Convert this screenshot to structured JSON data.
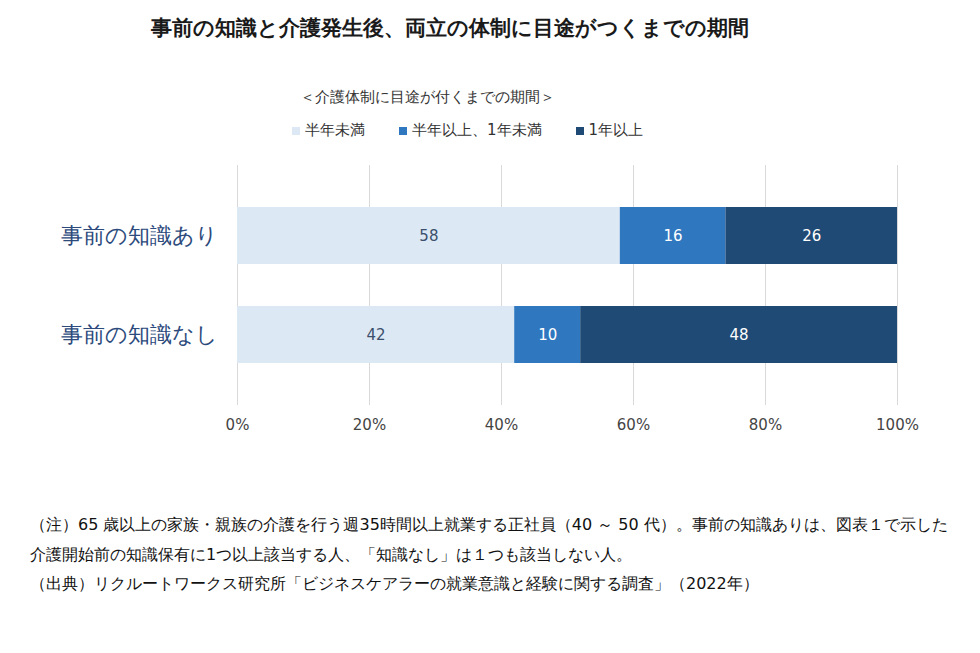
{
  "chart_data": {
    "type": "bar",
    "orientation": "horizontal",
    "stacked": true,
    "data_labels": true,
    "grid": true,
    "title": "事前の知識と介護発生後、両立の体制に目途がつくまでの期間",
    "subtitle": "＜介護体制に目途が付くまでの期間＞",
    "categories": [
      "事前の知識あり",
      "事前の知識なし"
    ],
    "series": [
      {
        "name": "半年未満",
        "color": "#dde8f5",
        "values": [
          58,
          42
        ]
      },
      {
        "name": "半年以上、1年未満",
        "color": "#2f78c0",
        "values": [
          16,
          10
        ]
      },
      {
        "name": "1年以上",
        "color": "#1f4a75",
        "values": [
          26,
          48
        ]
      }
    ],
    "xlim": [
      0,
      100
    ],
    "xticks": [
      {
        "value": 0,
        "label": "0%"
      },
      {
        "value": 20,
        "label": "20%"
      },
      {
        "value": 40,
        "label": "40%"
      },
      {
        "value": 60,
        "label": "60%"
      },
      {
        "value": 80,
        "label": "80%"
      },
      {
        "value": 100,
        "label": "100%"
      }
    ],
    "notes": [
      "（注）65 歳以上の家族・親族の介護を行う週35時間以上就業する正社員（40 ～ 50 代）。事前の知識ありは、図表１で示した介護開始前の知識保有に1つ以上該当する人、「知識なし」は１つも該当しない人。",
      "（出典）リクルートワークス研究所「ビジネスケアラーの就業意識と経験に関する調査」（2022年）"
    ]
  }
}
